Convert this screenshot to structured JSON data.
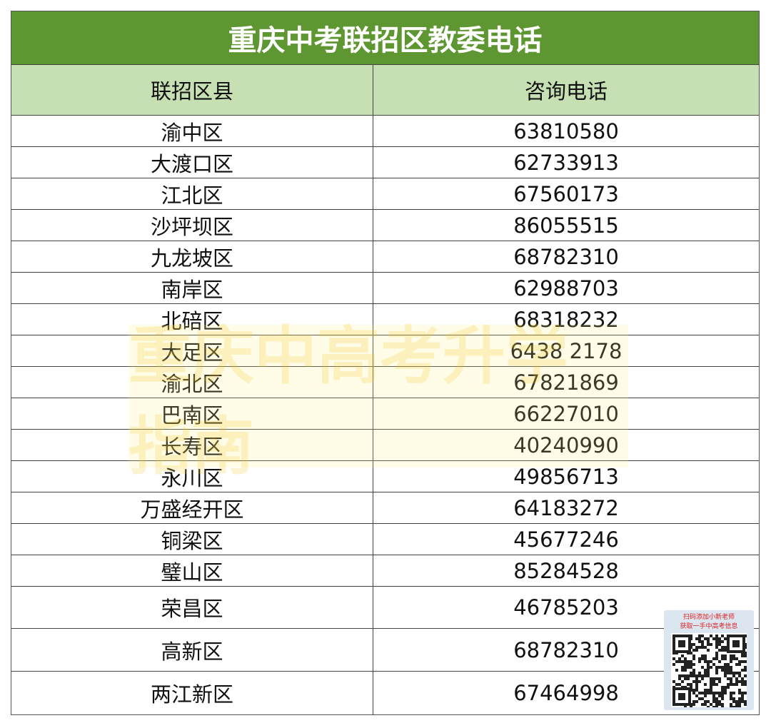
{
  "table": {
    "title": "重庆中考联招区教委电话",
    "header": [
      "联招区县",
      "咨询电话"
    ],
    "rows": [
      [
        "渝中区",
        "63810580"
      ],
      [
        "大渡口区",
        "62733913"
      ],
      [
        "江北区",
        "67560173"
      ],
      [
        "沙坪坝区",
        "86055515"
      ],
      [
        "九龙坡区",
        "68782310"
      ],
      [
        "南岸区",
        "62988703"
      ],
      [
        "北碚区",
        "68318232"
      ],
      [
        "大足区",
        "6438 2178"
      ],
      [
        "渝北区",
        "67821869"
      ],
      [
        "巴南区",
        "66227010"
      ],
      [
        "长寿区",
        "40240990"
      ],
      [
        "永川区",
        "49856713"
      ],
      [
        "万盛经开区",
        "64183272"
      ],
      [
        "铜梁区",
        "45677246"
      ],
      [
        "璧山区",
        "85284528"
      ],
      [
        "荣昌区",
        "46785203"
      ],
      [
        "高新区",
        "68782310"
      ],
      [
        "两江新区",
        "67464998"
      ]
    ]
  },
  "watermark": "重庆中高考升学指南",
  "qr_panel": {
    "line1": "扫码添加小新老师",
    "line2": "获取一手中高考信息"
  }
}
